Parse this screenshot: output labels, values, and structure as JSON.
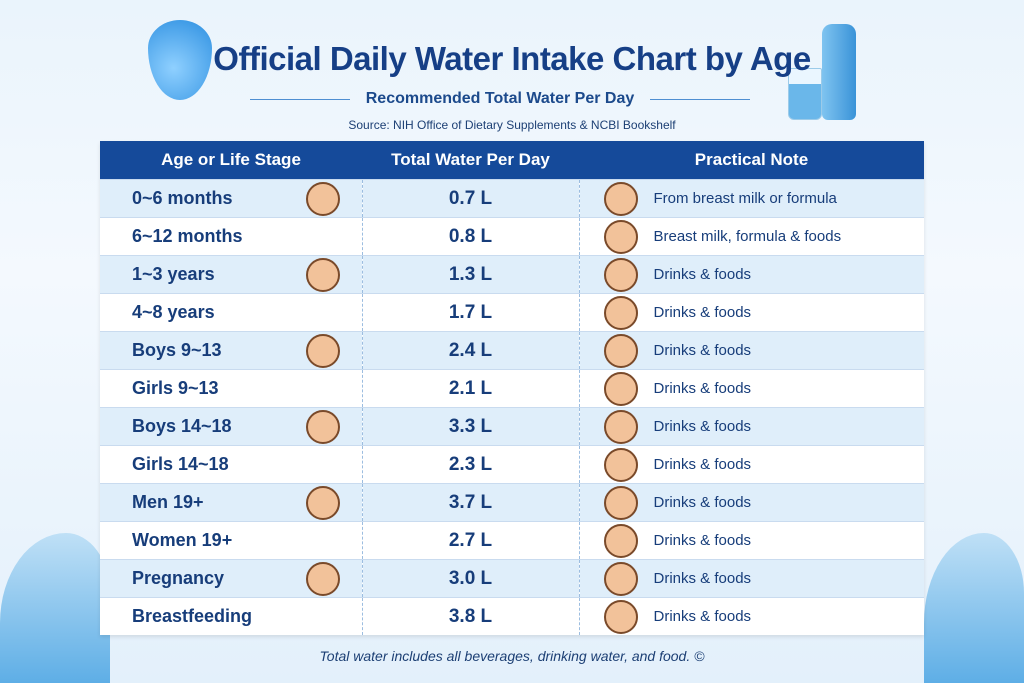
{
  "title": "Official Daily Water Intake Chart by Age",
  "subtitle": "Recommended Total Water Per Day",
  "source": "Source: NIH Office of Dietary Supplements & NCBI Bookshelf",
  "footer": "Total water includes all beverages, drinking water, and food.   ©",
  "colors": {
    "header": "#154a9a",
    "title": "#163f86",
    "row_alt": "#dfeefa"
  },
  "chart_data": {
    "type": "table",
    "columns": [
      "Age or Life Stage",
      "Total Water Per Day",
      "Practical Note"
    ],
    "rows": [
      {
        "stage": "0~6 months",
        "water": "0.7 L",
        "note": "From breast milk or formula"
      },
      {
        "stage": "6~12 months",
        "water": "0.8 L",
        "note": "Breast milk, formula & foods"
      },
      {
        "stage": "1~3 years",
        "water": "1.3 L",
        "note": "Drinks & foods"
      },
      {
        "stage": "4~8 years",
        "water": "1.7 L",
        "note": "Drinks & foods"
      },
      {
        "stage": "Boys 9~13",
        "water": "2.4 L",
        "note": "Drinks & foods"
      },
      {
        "stage": "Girls 9~13",
        "water": "2.1 L",
        "note": "Drinks & foods"
      },
      {
        "stage": "Boys 14~18",
        "water": "3.3 L",
        "note": "Drinks & foods"
      },
      {
        "stage": "Girls 14~18",
        "water": "2.3 L",
        "note": "Drinks & foods"
      },
      {
        "stage": "Men 19+",
        "water": "3.7 L",
        "note": "Drinks & foods"
      },
      {
        "stage": "Women 19+",
        "water": "2.7 L",
        "note": "Drinks & foods"
      },
      {
        "stage": "Pregnancy",
        "water": "3.0 L",
        "note": "Drinks & foods"
      },
      {
        "stage": "Breastfeeding",
        "water": "3.8 L",
        "note": "Drinks & foods"
      }
    ]
  }
}
